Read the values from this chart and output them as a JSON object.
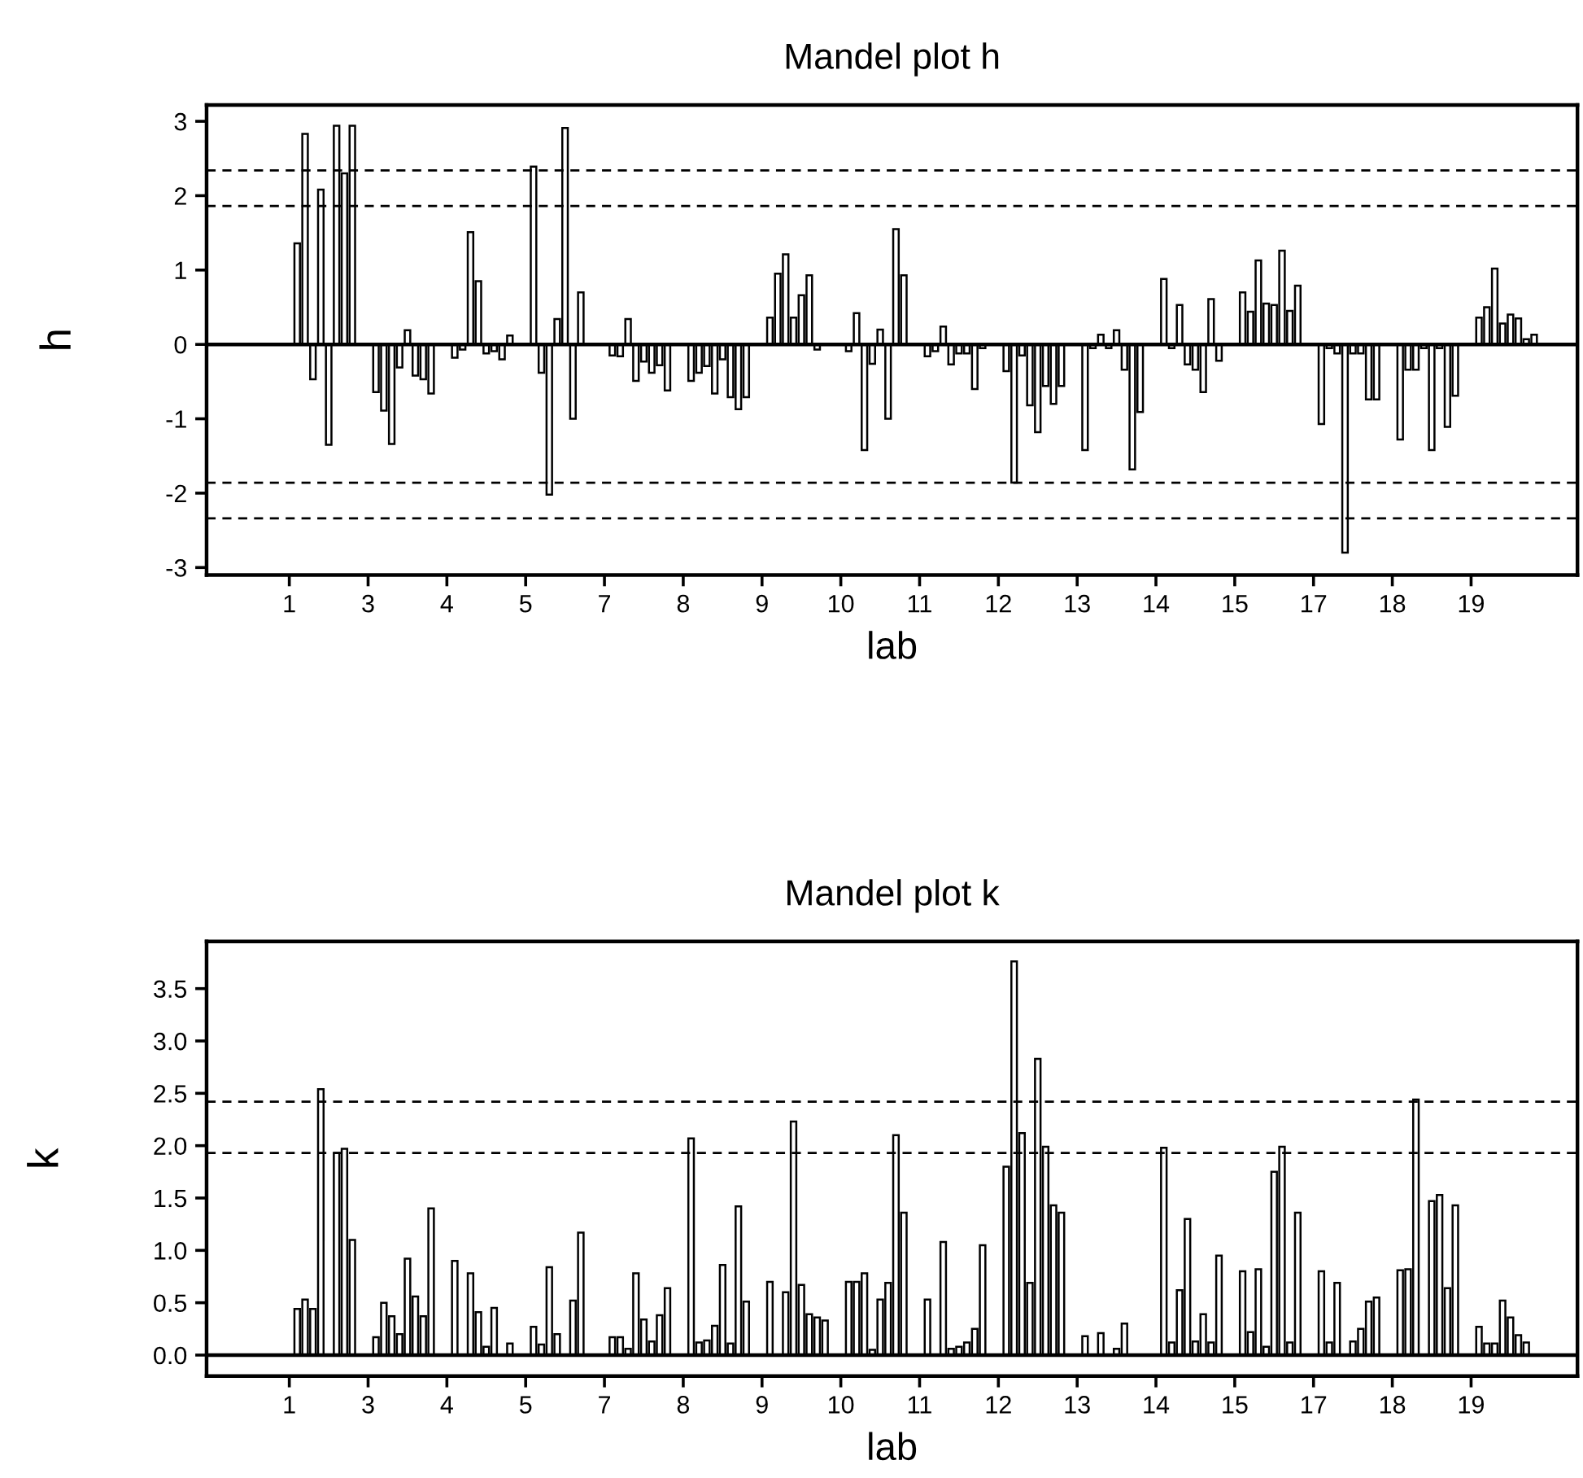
{
  "chart_data": [
    {
      "type": "bar",
      "title": "Mandel plot h",
      "xlabel": "lab",
      "ylabel": "h",
      "color": "#000000",
      "categories": [
        null,
        null,
        null,
        null,
        null,
        null,
        null,
        null,
        null,
        null,
        "1",
        null,
        null,
        null,
        null,
        null,
        null,
        null,
        null,
        null,
        "3",
        null,
        null,
        null,
        null,
        null,
        null,
        null,
        null,
        null,
        "4",
        null,
        null,
        null,
        null,
        null,
        null,
        null,
        null,
        null,
        "5",
        null,
        null,
        null,
        null,
        null,
        null,
        null,
        null,
        null,
        "7",
        null,
        null,
        null,
        null,
        null,
        null,
        null,
        null,
        null,
        "8",
        null,
        null,
        null,
        null,
        null,
        null,
        null,
        null,
        null,
        "9",
        null,
        null,
        null,
        null,
        null,
        null,
        null,
        null,
        null,
        "10",
        null,
        null,
        null,
        null,
        null,
        null,
        null,
        null,
        null,
        "11",
        null,
        null,
        null,
        null,
        null,
        null,
        null,
        null,
        null,
        "12",
        null,
        null,
        null,
        null,
        null,
        null,
        null,
        null,
        null,
        "13",
        null,
        null,
        null,
        null,
        null,
        null,
        null,
        null,
        null,
        "14",
        null,
        null,
        null,
        null,
        null,
        null,
        null,
        null,
        null,
        "15",
        null,
        null,
        null,
        null,
        null,
        null,
        null,
        null,
        null,
        "17",
        null,
        null,
        null,
        null,
        null,
        null,
        null,
        null,
        null,
        "18",
        null,
        null,
        null,
        null,
        null,
        null,
        null,
        null,
        null,
        "19",
        null,
        null,
        null,
        null,
        null,
        null,
        null,
        null,
        null,
        null,
        null,
        null,
        null
      ],
      "values": [
        null,
        null,
        null,
        null,
        null,
        null,
        null,
        null,
        null,
        null,
        null,
        1.36,
        2.83,
        -0.47,
        2.08,
        -1.35,
        2.94,
        2.3,
        2.94,
        null,
        null,
        -0.64,
        -0.89,
        -1.34,
        -0.31,
        0.19,
        -0.42,
        -0.47,
        -0.66,
        null,
        null,
        -0.18,
        -0.07,
        1.51,
        0.85,
        -0.12,
        -0.09,
        -0.2,
        0.12,
        null,
        null,
        2.39,
        -0.38,
        -2.02,
        0.34,
        2.91,
        -1.0,
        0.7,
        null,
        null,
        null,
        -0.15,
        -0.16,
        0.34,
        -0.49,
        -0.23,
        -0.38,
        -0.28,
        -0.62,
        null,
        null,
        -0.49,
        -0.38,
        -0.29,
        -0.66,
        -0.2,
        -0.71,
        -0.87,
        -0.71,
        null,
        null,
        0.36,
        0.95,
        1.21,
        0.36,
        0.66,
        0.93,
        -0.07,
        null,
        null,
        null,
        -0.09,
        0.42,
        -1.42,
        -0.26,
        0.2,
        -1.0,
        1.55,
        0.93,
        null,
        null,
        -0.16,
        -0.09,
        0.24,
        -0.27,
        -0.12,
        -0.12,
        -0.6,
        -0.05,
        null,
        null,
        -0.36,
        -1.86,
        -0.15,
        -0.82,
        -1.18,
        -0.56,
        -0.8,
        -0.56,
        null,
        null,
        -1.42,
        -0.05,
        0.13,
        -0.05,
        0.19,
        -0.34,
        -1.68,
        -0.91,
        null,
        null,
        0.88,
        -0.05,
        0.53,
        -0.27,
        -0.34,
        -0.64,
        0.61,
        -0.22,
        null,
        null,
        0.7,
        0.44,
        1.13,
        0.55,
        0.53,
        1.26,
        0.45,
        0.79,
        null,
        null,
        -1.07,
        -0.05,
        -0.12,
        -2.8,
        -0.12,
        -0.12,
        -0.74,
        -0.74,
        null,
        null,
        -1.28,
        -0.34,
        -0.34,
        -0.05,
        -1.42,
        -0.05,
        -1.11,
        -0.69,
        null,
        null,
        0.36,
        0.5,
        1.02,
        0.28,
        0.4,
        0.35,
        0.07,
        0.13,
        null,
        null,
        null,
        null,
        null
      ],
      "ylim": [
        -3.1,
        3.22
      ],
      "yticks": [
        {
          "value": -3,
          "label": "-3"
        },
        {
          "value": -2,
          "label": "-2"
        },
        {
          "value": -1,
          "label": "-1"
        },
        0,
        1,
        2,
        3
      ],
      "ref_lines": [
        {
          "axis": "y",
          "value": 0,
          "color": "#000000",
          "line_style": "solid"
        },
        {
          "axis": "y",
          "value": 2.34,
          "color": "#000000",
          "line_style": "dashed"
        },
        {
          "axis": "y",
          "value": 1.86,
          "color": "#000000",
          "line_style": "dashed"
        },
        {
          "axis": "y",
          "value": -1.86,
          "color": "#000000",
          "line_style": "dashed"
        },
        {
          "axis": "y",
          "value": -2.34,
          "color": "#000000",
          "line_style": "dashed"
        }
      ]
    },
    {
      "type": "bar",
      "title": "Mandel plot k",
      "xlabel": "lab",
      "ylabel": "k",
      "color": "#000000",
      "categories": [
        null,
        null,
        null,
        null,
        null,
        null,
        null,
        null,
        null,
        null,
        "1",
        null,
        null,
        null,
        null,
        null,
        null,
        null,
        null,
        null,
        "3",
        null,
        null,
        null,
        null,
        null,
        null,
        null,
        null,
        null,
        "4",
        null,
        null,
        null,
        null,
        null,
        null,
        null,
        null,
        null,
        "5",
        null,
        null,
        null,
        null,
        null,
        null,
        null,
        null,
        null,
        "7",
        null,
        null,
        null,
        null,
        null,
        null,
        null,
        null,
        null,
        "8",
        null,
        null,
        null,
        null,
        null,
        null,
        null,
        null,
        null,
        "9",
        null,
        null,
        null,
        null,
        null,
        null,
        null,
        null,
        null,
        "10",
        null,
        null,
        null,
        null,
        null,
        null,
        null,
        null,
        null,
        "11",
        null,
        null,
        null,
        null,
        null,
        null,
        null,
        null,
        null,
        "12",
        null,
        null,
        null,
        null,
        null,
        null,
        null,
        null,
        null,
        "13",
        null,
        null,
        null,
        null,
        null,
        null,
        null,
        null,
        null,
        "14",
        null,
        null,
        null,
        null,
        null,
        null,
        null,
        null,
        null,
        "15",
        null,
        null,
        null,
        null,
        null,
        null,
        null,
        null,
        null,
        "17",
        null,
        null,
        null,
        null,
        null,
        null,
        null,
        null,
        null,
        "18",
        null,
        null,
        null,
        null,
        null,
        null,
        null,
        null,
        null,
        "19",
        null,
        null,
        null,
        null,
        null,
        null,
        null,
        null,
        null,
        null,
        null,
        null,
        null
      ],
      "values": [
        null,
        null,
        null,
        null,
        null,
        null,
        null,
        null,
        null,
        null,
        null,
        0.44,
        0.53,
        0.44,
        2.54,
        null,
        1.93,
        1.97,
        1.1,
        null,
        null,
        0.17,
        0.5,
        0.37,
        0.2,
        0.92,
        0.56,
        0.37,
        1.4,
        null,
        null,
        0.9,
        null,
        0.78,
        0.41,
        0.08,
        0.45,
        null,
        0.11,
        null,
        null,
        0.27,
        0.1,
        0.84,
        0.2,
        null,
        0.52,
        1.17,
        null,
        null,
        null,
        0.17,
        0.17,
        0.06,
        0.78,
        0.34,
        0.13,
        0.38,
        0.64,
        null,
        null,
        2.07,
        0.12,
        0.14,
        0.28,
        0.86,
        0.11,
        1.42,
        0.51,
        null,
        null,
        0.7,
        null,
        0.6,
        2.23,
        0.67,
        0.39,
        0.36,
        0.33,
        null,
        null,
        0.7,
        0.7,
        0.78,
        0.05,
        0.53,
        0.69,
        2.1,
        1.36,
        null,
        null,
        0.53,
        null,
        1.08,
        0.06,
        0.08,
        0.12,
        0.25,
        1.05,
        null,
        null,
        1.8,
        3.76,
        2.12,
        0.69,
        2.83,
        1.99,
        1.43,
        1.36,
        null,
        null,
        0.18,
        null,
        0.21,
        null,
        0.06,
        0.3,
        null,
        null,
        null,
        null,
        1.98,
        0.12,
        0.62,
        1.3,
        0.13,
        0.39,
        0.12,
        0.95,
        null,
        null,
        0.8,
        0.22,
        0.82,
        0.08,
        1.75,
        1.99,
        0.12,
        1.36,
        null,
        null,
        0.8,
        0.12,
        0.69,
        null,
        0.13,
        0.25,
        0.51,
        0.55,
        null,
        null,
        0.81,
        0.82,
        2.44,
        null,
        1.47,
        1.53,
        0.64,
        1.43,
        null,
        null,
        0.27,
        0.11,
        0.11,
        0.52,
        0.36,
        0.19,
        0.12,
        null,
        null,
        null,
        null,
        null,
        null
      ],
      "ylim": [
        -0.2,
        3.95
      ],
      "yticks": [
        {
          "value": 0,
          "label": "0.0"
        },
        0.5,
        {
          "value": 1,
          "label": "1.0"
        },
        1.5,
        {
          "value": 2,
          "label": "2.0"
        },
        2.5,
        {
          "value": 3,
          "label": "3.0"
        },
        3.5
      ],
      "ref_lines": [
        {
          "axis": "y",
          "value": 0,
          "color": "#000000",
          "line_style": "solid"
        },
        {
          "axis": "y",
          "value": 2.42,
          "color": "#000000",
          "line_style": "dashed"
        },
        {
          "axis": "y",
          "value": 1.93,
          "color": "#000000",
          "line_style": "dashed"
        }
      ]
    }
  ]
}
